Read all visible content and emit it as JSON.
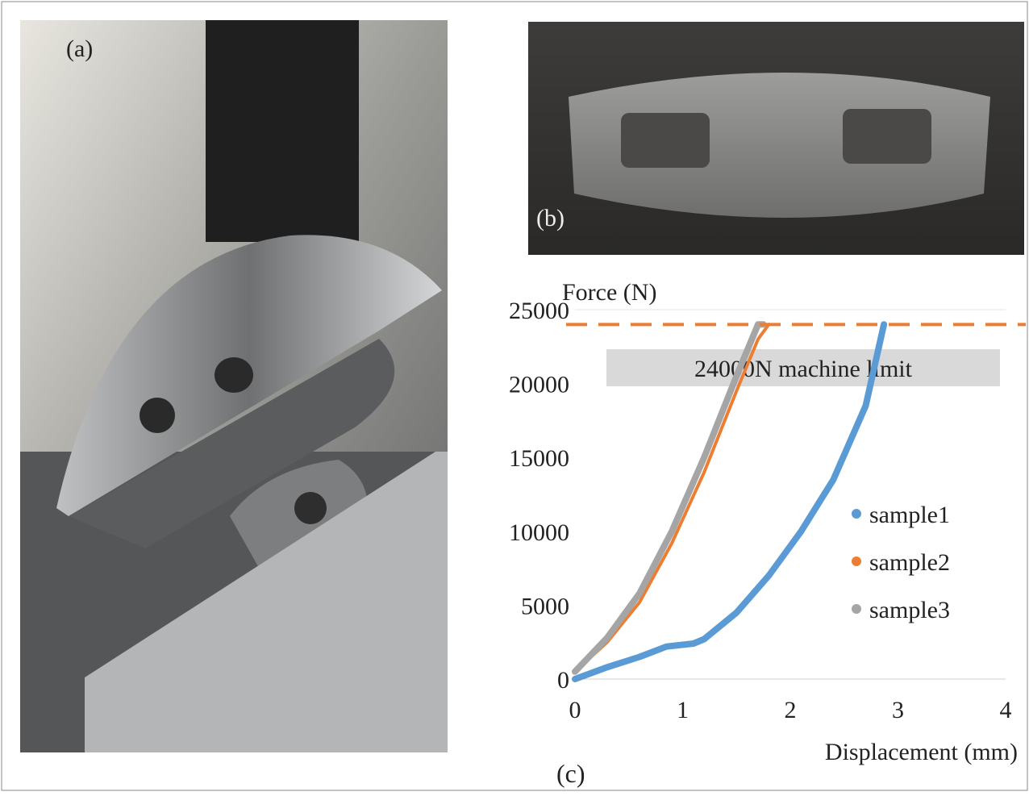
{
  "panels": {
    "a": "(a)",
    "b": "(b)",
    "c": "(c)"
  },
  "chart_data": {
    "type": "line",
    "y_label": "Force (N)",
    "x_label": "Displacement (mm)",
    "xlim": [
      0,
      4
    ],
    "xticks": [
      0,
      1,
      2,
      3,
      4
    ],
    "ylim": [
      0,
      25000
    ],
    "yticks": [
      0,
      5000,
      10000,
      15000,
      20000,
      25000
    ],
    "grid": false,
    "legend": "right",
    "reference_line": {
      "value": 24000,
      "label": "24000N machine limit",
      "color": "#ed7d31"
    },
    "series": [
      {
        "name": "sample1",
        "color": "#5b9bd5",
        "x": [
          0,
          0.3,
          0.6,
          0.85,
          1.1,
          1.2,
          1.5,
          1.8,
          2.1,
          2.4,
          2.7,
          2.87
        ],
        "values": [
          0,
          800,
          1500,
          2200,
          2400,
          2700,
          4500,
          7000,
          10000,
          13500,
          18500,
          24000
        ]
      },
      {
        "name": "sample2",
        "color": "#ed7d31",
        "x": [
          0,
          0.3,
          0.6,
          0.9,
          1.2,
          1.5,
          1.7,
          1.8
        ],
        "values": [
          500,
          2500,
          5200,
          9200,
          14000,
          19500,
          23000,
          24000
        ]
      },
      {
        "name": "sample3",
        "color": "#a5a5a5",
        "x": [
          0,
          0.3,
          0.6,
          0.9,
          1.2,
          1.5,
          1.7,
          1.75
        ],
        "values": [
          500,
          2800,
          5800,
          10000,
          15000,
          20500,
          24000,
          24000
        ]
      }
    ]
  }
}
